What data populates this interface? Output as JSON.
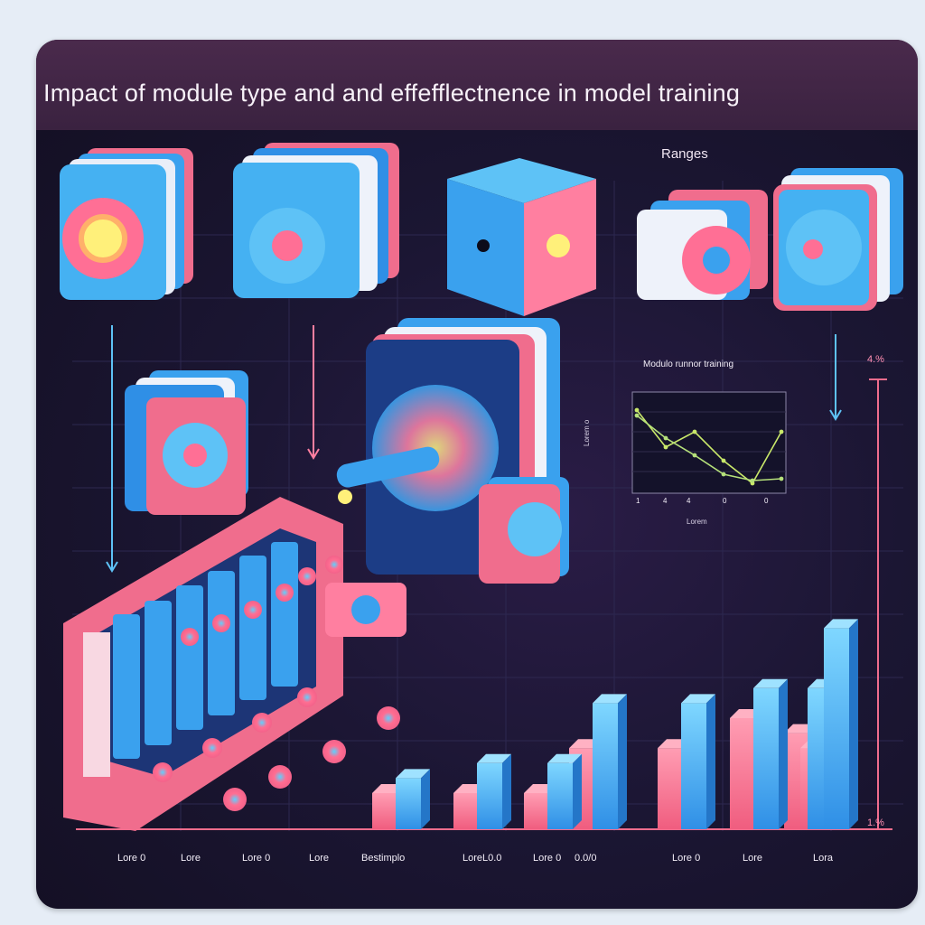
{
  "header": {
    "title": "Impact of module type and and effefflectnence in model training",
    "subtitle": "Ranges"
  },
  "axis": {
    "top_label": "4.%",
    "bottom_label": "1.%"
  },
  "inset": {
    "title": "Modulo runnor training",
    "ylabel": "Lorem o",
    "xlabel": "Lorem",
    "x_ticks": [
      "1",
      "4",
      "4",
      "0",
      "0"
    ]
  },
  "colors": {
    "pink": "#f6718f",
    "blue": "#3aa1ee",
    "light_blue": "#66d0f4",
    "inset_series": "#c9e86a"
  },
  "chart_data": [
    {
      "type": "bar",
      "categories": [
        "Lore",
        "Lore",
        "Lore",
        "Lore",
        "Lore",
        "Lore",
        "Lore",
        "Lore"
      ],
      "series": [
        {
          "values": [
            1.0,
            1.0,
            1.0,
            1.3,
            1.3,
            1.5,
            1.4,
            1.3
          ]
        },
        {
          "values": [
            1.1,
            1.2,
            1.2,
            1.6,
            1.6,
            1.7,
            1.7,
            2.1
          ]
        }
      ]
    },
    {
      "type": "line",
      "title": "Modulo runnor training",
      "x": [
        1,
        2,
        3,
        4,
        5,
        6
      ],
      "series": [
        {
          "values": [
            0.86,
            0.45,
            0.62,
            0.3,
            0.05,
            0.62
          ]
        },
        {
          "values": [
            0.8,
            0.55,
            0.36,
            0.15,
            0.08,
            0.1
          ]
        }
      ]
    }
  ],
  "bottom_labels": [
    "Lore 0",
    "Lore",
    "Lore 0",
    "Lore",
    "Bestimplo",
    "LoreL0.0",
    "Lore 0",
    "0.0/0",
    "Lore 0",
    "Lore",
    "Lora"
  ]
}
